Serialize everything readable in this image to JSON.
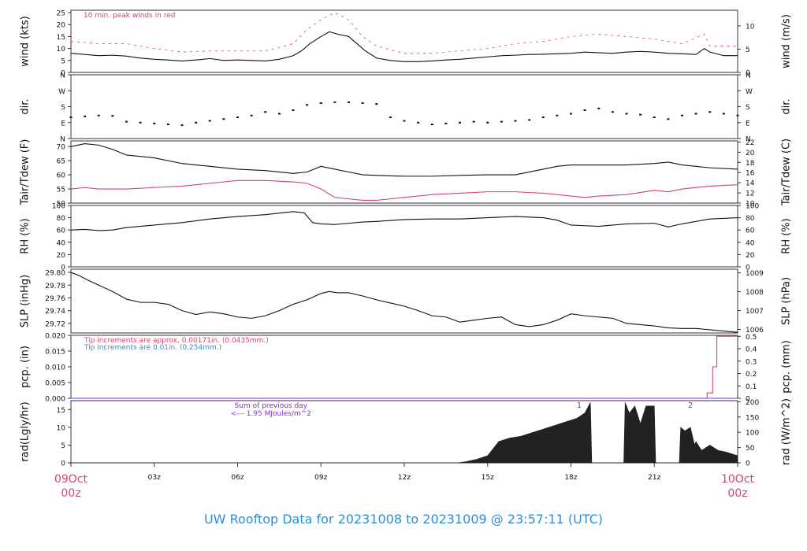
{
  "footer_title": "UW Rooftop Data for 20231008  to  20231009 @ 23:57:11  (UTC)",
  "x_axis": {
    "ticks": [
      {
        "h": 0,
        "label": "09Oct",
        "label2": "00z",
        "major": true
      },
      {
        "h": 3,
        "label": "03z"
      },
      {
        "h": 6,
        "label": "06z"
      },
      {
        "h": 9,
        "label": "09z"
      },
      {
        "h": 12,
        "label": "12z"
      },
      {
        "h": 15,
        "label": "15z"
      },
      {
        "h": 18,
        "label": "18z"
      },
      {
        "h": 21,
        "label": "21z"
      },
      {
        "h": 24,
        "label": "10Oct",
        "label2": "00z",
        "major": true
      }
    ],
    "major_color": "#d6456a",
    "range_hours": [
      0,
      24
    ]
  },
  "colors": {
    "black": "#111111",
    "red": "#d6456a",
    "blue": "#2b8fd6",
    "purple": "#8a2be2"
  },
  "chart_data": [
    {
      "id": "wind",
      "type": "line",
      "ylabel_left": "wind (kts)",
      "ylabel_right": "wind (m/s)",
      "ylim": [
        0,
        26
      ],
      "yticks_left": [
        {
          "v": 0,
          "t": "0"
        },
        {
          "v": 5,
          "t": "5"
        },
        {
          "v": 10,
          "t": "10"
        },
        {
          "v": 15,
          "t": "15"
        },
        {
          "v": 20,
          "t": "20"
        },
        {
          "v": 25,
          "t": "25"
        }
      ],
      "yticks_right": [
        {
          "v": 0,
          "t": "0"
        },
        {
          "v": 9.72,
          "t": "5"
        },
        {
          "v": 19.44,
          "t": "10"
        }
      ],
      "annotation": "10 min. peak winds in red",
      "series": [
        {
          "role": "speed",
          "color": "#111111",
          "x": [
            0,
            0.5,
            1,
            1.5,
            2,
            2.5,
            3,
            3.5,
            4,
            4.5,
            5,
            5.5,
            6,
            6.5,
            7,
            7.5,
            8,
            8.3,
            8.6,
            9,
            9.3,
            9.6,
            10,
            10.3,
            10.6,
            11,
            11.5,
            12,
            12.5,
            13,
            13.5,
            14,
            14.5,
            15,
            15.5,
            16,
            16.5,
            17,
            17.5,
            18,
            18.5,
            19,
            19.5,
            20,
            20.5,
            21,
            21.5,
            22,
            22.5,
            22.8,
            23,
            23.5,
            24
          ],
          "y": [
            8,
            7.5,
            7,
            7.2,
            6.8,
            6,
            5.5,
            5.2,
            4.8,
            5.2,
            5.8,
            5,
            5.2,
            5,
            4.8,
            5.5,
            7,
            9,
            12,
            15,
            17,
            16,
            15,
            12,
            9,
            6,
            5,
            4.5,
            4.5,
            4.8,
            5.2,
            5.5,
            6,
            6.5,
            7,
            7.2,
            7.5,
            7.6,
            7.8,
            8,
            8.5,
            8.2,
            8,
            8.5,
            8.8,
            8.5,
            8,
            7.8,
            7.5,
            10,
            8.5,
            7,
            7
          ]
        },
        {
          "role": "peak",
          "color": "#d6456a",
          "x": [
            0,
            1,
            2,
            3,
            4,
            5,
            6,
            7,
            8,
            8.5,
            9,
            9.5,
            10,
            10.5,
            11,
            12,
            13,
            14,
            15,
            16,
            17,
            18,
            19,
            20,
            21,
            22,
            22.8,
            23,
            24
          ],
          "y": [
            13,
            12,
            12,
            10,
            8.5,
            9,
            9,
            9,
            12,
            18,
            22,
            25,
            22,
            15,
            11,
            8,
            8,
            9,
            10,
            12,
            13,
            15,
            16,
            15,
            14,
            12,
            16,
            11,
            11
          ]
        }
      ]
    },
    {
      "id": "dir",
      "type": "scatter",
      "ylabel_left": "dir.",
      "ylabel_right": "dir.",
      "ylim": [
        0,
        360
      ],
      "yticks_left": [
        {
          "v": 0,
          "t": "N"
        },
        {
          "v": 90,
          "t": "E"
        },
        {
          "v": 180,
          "t": "S"
        },
        {
          "v": 270,
          "t": "W"
        },
        {
          "v": 360,
          "t": "N"
        }
      ],
      "yticks_right": [
        {
          "v": 0,
          "t": "N"
        },
        {
          "v": 90,
          "t": "E"
        },
        {
          "v": 180,
          "t": "S"
        },
        {
          "v": 270,
          "t": "W"
        },
        {
          "v": 360,
          "t": "N"
        }
      ],
      "series": [
        {
          "color": "#111111",
          "x": [
            0,
            0.5,
            1,
            1.5,
            2,
            2.5,
            3,
            3.5,
            4,
            4.5,
            5,
            5.5,
            6,
            6.5,
            7,
            7.5,
            8,
            8.5,
            9,
            9.5,
            10,
            10.5,
            11,
            11.5,
            12,
            12.5,
            13,
            13.5,
            14,
            14.5,
            15,
            15.5,
            16,
            16.5,
            17,
            17.5,
            18,
            18.5,
            19,
            19.5,
            20,
            20.5,
            21,
            21.5,
            22,
            22.5,
            23,
            23.5,
            24
          ],
          "y": [
            120,
            125,
            130,
            128,
            95,
            90,
            85,
            80,
            75,
            90,
            100,
            110,
            120,
            130,
            150,
            140,
            160,
            190,
            200,
            205,
            205,
            200,
            195,
            120,
            100,
            90,
            80,
            85,
            90,
            95,
            90,
            95,
            100,
            105,
            120,
            130,
            140,
            160,
            170,
            150,
            140,
            135,
            120,
            110,
            130,
            140,
            150,
            140,
            130
          ]
        }
      ]
    },
    {
      "id": "temp",
      "type": "line",
      "ylabel_left": "Tair/Tdew (F)",
      "ylabel_right": "Tair/Tdew (C)",
      "ylim": [
        50,
        72
      ],
      "yticks_left": [
        {
          "v": 50,
          "t": "50"
        },
        {
          "v": 55,
          "t": "55"
        },
        {
          "v": 60,
          "t": "60"
        },
        {
          "v": 65,
          "t": "65"
        },
        {
          "v": 70,
          "t": "70"
        }
      ],
      "yticks_right": [
        {
          "v": 50,
          "t": "10"
        },
        {
          "v": 53.6,
          "t": "12"
        },
        {
          "v": 57.2,
          "t": "14"
        },
        {
          "v": 60.8,
          "t": "16"
        },
        {
          "v": 64.4,
          "t": "18"
        },
        {
          "v": 68,
          "t": "20"
        },
        {
          "v": 71.6,
          "t": "22"
        }
      ],
      "series": [
        {
          "role": "air",
          "color": "#111111",
          "x": [
            0,
            0.5,
            1,
            1.5,
            2,
            3,
            4,
            5,
            6,
            7,
            8,
            8.5,
            9,
            9.5,
            10,
            10.5,
            11,
            12,
            13,
            14,
            15,
            16,
            17,
            17.5,
            18,
            19,
            20,
            21,
            21.5,
            22,
            23,
            24
          ],
          "y": [
            70,
            71,
            70.5,
            69,
            67,
            66,
            64,
            63,
            62,
            61.5,
            60.5,
            61,
            63,
            62,
            61,
            60,
            59.8,
            59.5,
            59.5,
            59.8,
            60,
            60,
            62,
            63,
            63.5,
            63.5,
            63.5,
            64,
            64.5,
            63.5,
            62.5,
            62
          ]
        },
        {
          "role": "dew",
          "color": "#d6456a",
          "x": [
            0,
            0.5,
            1,
            2,
            3,
            4,
            5,
            6,
            7,
            8,
            8.5,
            9,
            9.5,
            10,
            10.5,
            11,
            11.5,
            12,
            13,
            14,
            15,
            16,
            17,
            18,
            18.5,
            19,
            20,
            21,
            21.5,
            22,
            23,
            24
          ],
          "y": [
            55,
            55.5,
            55,
            55,
            55.5,
            56,
            57,
            58,
            58,
            57.5,
            57,
            55,
            52,
            51.5,
            51,
            51,
            51.5,
            52,
            53,
            53.5,
            54,
            54,
            53.5,
            52.5,
            52,
            52.5,
            53,
            54.5,
            54,
            55,
            56,
            56.5
          ]
        }
      ]
    },
    {
      "id": "rh",
      "type": "line",
      "ylabel_left": "RH (%)",
      "ylabel_right": "RH (%)",
      "ylim": [
        0,
        100
      ],
      "yticks_left": [
        {
          "v": 0,
          "t": "0"
        },
        {
          "v": 20,
          "t": "20"
        },
        {
          "v": 40,
          "t": "40"
        },
        {
          "v": 60,
          "t": "60"
        },
        {
          "v": 80,
          "t": "80"
        },
        {
          "v": 100,
          "t": "100"
        }
      ],
      "yticks_right": [
        {
          "v": 0,
          "t": "0"
        },
        {
          "v": 20,
          "t": "20"
        },
        {
          "v": 40,
          "t": "40"
        },
        {
          "v": 60,
          "t": "60"
        },
        {
          "v": 80,
          "t": "80"
        },
        {
          "v": 100,
          "t": "100"
        }
      ],
      "series": [
        {
          "color": "#111111",
          "x": [
            0,
            0.5,
            1,
            1.5,
            2,
            3,
            4,
            5,
            6,
            7,
            8,
            8.4,
            8.7,
            9,
            9.5,
            10,
            10.5,
            11,
            12,
            13,
            14,
            15,
            16,
            17,
            17.5,
            18,
            18.5,
            19,
            20,
            21,
            21.5,
            22,
            23,
            24
          ],
          "y": [
            60,
            61,
            59,
            60,
            64,
            68,
            72,
            78,
            82,
            85,
            90,
            88,
            72,
            70,
            69,
            71,
            73,
            74,
            77,
            78,
            78,
            80,
            82,
            80,
            76,
            68,
            67,
            66,
            70,
            71,
            65,
            70,
            78,
            80
          ]
        }
      ]
    },
    {
      "id": "slp",
      "type": "line",
      "ylabel_left": "SLP (inHg)",
      "ylabel_right": "SLP (hPa)",
      "ylim": [
        29.705,
        29.805
      ],
      "yticks_left": [
        {
          "v": 29.72,
          "t": "29.72"
        },
        {
          "v": 29.74,
          "t": "29.74"
        },
        {
          "v": 29.76,
          "t": "29.76"
        },
        {
          "v": 29.78,
          "t": "29.78"
        },
        {
          "v": 29.8,
          "t": "29.80"
        }
      ],
      "yticks_right": [
        {
          "v": 29.7106,
          "t": "1006"
        },
        {
          "v": 29.7401,
          "t": "1007"
        },
        {
          "v": 29.7697,
          "t": "1008"
        },
        {
          "v": 29.7992,
          "t": "1009"
        }
      ],
      "series": [
        {
          "color": "#111111",
          "x": [
            0,
            0.3,
            0.6,
            1,
            1.5,
            2,
            2.5,
            3,
            3.5,
            4,
            4.5,
            5,
            5.5,
            6,
            6.5,
            7,
            7.5,
            8,
            8.5,
            9,
            9.3,
            9.6,
            10,
            10.5,
            11,
            11.5,
            12,
            12.5,
            13,
            13.5,
            14,
            14.5,
            15,
            15.5,
            16,
            16.5,
            17,
            17.5,
            18,
            18.5,
            19,
            19.5,
            20,
            20.5,
            21,
            21.5,
            22,
            22.5,
            23,
            23.5,
            24
          ],
          "y": [
            29.8,
            29.795,
            29.788,
            29.78,
            29.77,
            29.758,
            29.753,
            29.753,
            29.75,
            29.74,
            29.734,
            29.738,
            29.735,
            29.73,
            29.728,
            29.732,
            29.74,
            29.75,
            29.757,
            29.767,
            29.77,
            29.768,
            29.768,
            29.763,
            29.757,
            29.752,
            29.747,
            29.74,
            29.732,
            29.73,
            29.722,
            29.725,
            29.728,
            29.73,
            29.718,
            29.715,
            29.718,
            29.725,
            29.735,
            29.732,
            29.73,
            29.728,
            29.72,
            29.718,
            29.716,
            29.713,
            29.712,
            29.712,
            29.71,
            29.708,
            29.706
          ]
        }
      ]
    },
    {
      "id": "pcp",
      "type": "line",
      "ylabel_left": "pcp. (in)",
      "ylabel_right": "pcp. (mm)",
      "ylim": [
        0,
        0.02
      ],
      "yticks_left": [
        {
          "v": 0,
          "t": "0.000"
        },
        {
          "v": 0.005,
          "t": "0.005"
        },
        {
          "v": 0.01,
          "t": "0.010"
        },
        {
          "v": 0.015,
          "t": "0.015"
        },
        {
          "v": 0.02,
          "t": "0.020"
        }
      ],
      "yticks_right": [
        {
          "v": 0,
          "t": "0"
        },
        {
          "v": 0.003937,
          "t": "0.1"
        },
        {
          "v": 0.007874,
          "t": "0.2"
        },
        {
          "v": 0.011811,
          "t": "0.3"
        },
        {
          "v": 0.015748,
          "t": "0.4"
        },
        {
          "v": 0.019685,
          "t": "0.5"
        }
      ],
      "annotation_red": "Tip increments are approx. 0.00171in. (0.0435mm.)",
      "annotation_blue": "Tip increments are 0.01in. (0.254mm.)",
      "series": [
        {
          "role": "approx",
          "color": "#d6456a",
          "x": [
            0,
            22.9,
            22.9,
            23.1,
            23.1,
            23.25,
            23.25,
            24
          ],
          "y": [
            0,
            0,
            0.0017,
            0.0017,
            0.01,
            0.01,
            0.0197,
            0.0197
          ]
        },
        {
          "role": "tip",
          "color": "#8a2be2",
          "x": [
            0,
            24
          ],
          "y": [
            0,
            0
          ]
        }
      ]
    },
    {
      "id": "rad",
      "type": "area",
      "ylabel_left": "rad(Lgly/hr)",
      "ylabel_right": "rad (W/m^2)",
      "ylim": [
        0,
        17.5
      ],
      "yticks_left": [
        {
          "v": 0,
          "t": "0"
        },
        {
          "v": 5,
          "t": "5"
        },
        {
          "v": 10,
          "t": "10"
        },
        {
          "v": 15,
          "t": "15"
        }
      ],
      "yticks_right": [
        {
          "v": 0,
          "t": "0"
        },
        {
          "v": 4.3,
          "t": "50"
        },
        {
          "v": 8.6,
          "t": "100"
        },
        {
          "v": 12.9,
          "t": "150"
        },
        {
          "v": 17.2,
          "t": "200"
        }
      ],
      "annotation_line1": "Sum of previous day",
      "annotation_line2": "<--- 1.95 MJoules/m^2",
      "markers": [
        {
          "x": 18.3,
          "t": "1"
        },
        {
          "x": 22.3,
          "t": "2"
        }
      ],
      "series": [
        {
          "color": "#222222",
          "x": [
            0,
            13.9,
            14.2,
            14.6,
            15,
            15.2,
            15.4,
            15.8,
            16.2,
            16.6,
            17,
            17.4,
            17.8,
            18.2,
            18.5,
            18.7,
            18.75,
            19.9,
            19.95,
            20.1,
            20.3,
            20.5,
            20.7,
            21,
            21.05,
            21.9,
            21.95,
            22.1,
            22.3,
            22.45,
            22.5,
            22.7,
            23,
            23.3,
            23.6,
            24
          ],
          "y": [
            0,
            0,
            0.3,
            1,
            2,
            4,
            6,
            7,
            7.5,
            8.5,
            9.5,
            10.5,
            11.5,
            12.5,
            14,
            17,
            0,
            0,
            17,
            14,
            16,
            11,
            16,
            16,
            0,
            0,
            10,
            9,
            10,
            5,
            6,
            3.5,
            5,
            3.5,
            3,
            2
          ]
        }
      ]
    }
  ]
}
